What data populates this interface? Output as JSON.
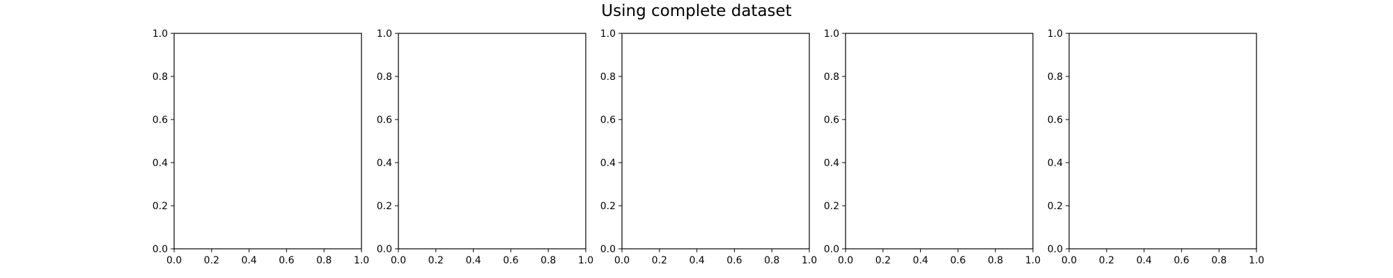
{
  "figure": {
    "suptitle": "Using complete dataset"
  },
  "chart_data": [
    {
      "type": "scatter",
      "title": "",
      "xlabel": "",
      "ylabel": "",
      "xlim": [
        0,
        1
      ],
      "ylim": [
        0,
        1
      ],
      "xticks": [
        "0.0",
        "0.2",
        "0.4",
        "0.6",
        "0.8",
        "1.0"
      ],
      "yticks": [
        "0.0",
        "0.2",
        "0.4",
        "0.6",
        "0.8",
        "1.0"
      ],
      "series": [],
      "grid": false
    },
    {
      "type": "scatter",
      "title": "",
      "xlabel": "",
      "ylabel": "",
      "xlim": [
        0,
        1
      ],
      "ylim": [
        0,
        1
      ],
      "xticks": [
        "0.0",
        "0.2",
        "0.4",
        "0.6",
        "0.8",
        "1.0"
      ],
      "yticks": [
        "0.0",
        "0.2",
        "0.4",
        "0.6",
        "0.8",
        "1.0"
      ],
      "series": [],
      "grid": false
    },
    {
      "type": "scatter",
      "title": "",
      "xlabel": "",
      "ylabel": "",
      "xlim": [
        0,
        1
      ],
      "ylim": [
        0,
        1
      ],
      "xticks": [
        "0.0",
        "0.2",
        "0.4",
        "0.6",
        "0.8",
        "1.0"
      ],
      "yticks": [
        "0.0",
        "0.2",
        "0.4",
        "0.6",
        "0.8",
        "1.0"
      ],
      "series": [],
      "grid": false
    },
    {
      "type": "scatter",
      "title": "",
      "xlabel": "",
      "ylabel": "",
      "xlim": [
        0,
        1
      ],
      "ylim": [
        0,
        1
      ],
      "xticks": [
        "0.0",
        "0.2",
        "0.4",
        "0.6",
        "0.8",
        "1.0"
      ],
      "yticks": [
        "0.0",
        "0.2",
        "0.4",
        "0.6",
        "0.8",
        "1.0"
      ],
      "series": [],
      "grid": false
    },
    {
      "type": "scatter",
      "title": "",
      "xlabel": "",
      "ylabel": "",
      "xlim": [
        0,
        1
      ],
      "ylim": [
        0,
        1
      ],
      "xticks": [
        "0.0",
        "0.2",
        "0.4",
        "0.6",
        "0.8",
        "1.0"
      ],
      "yticks": [
        "0.0",
        "0.2",
        "0.4",
        "0.6",
        "0.8",
        "1.0"
      ],
      "series": [],
      "grid": false
    }
  ]
}
